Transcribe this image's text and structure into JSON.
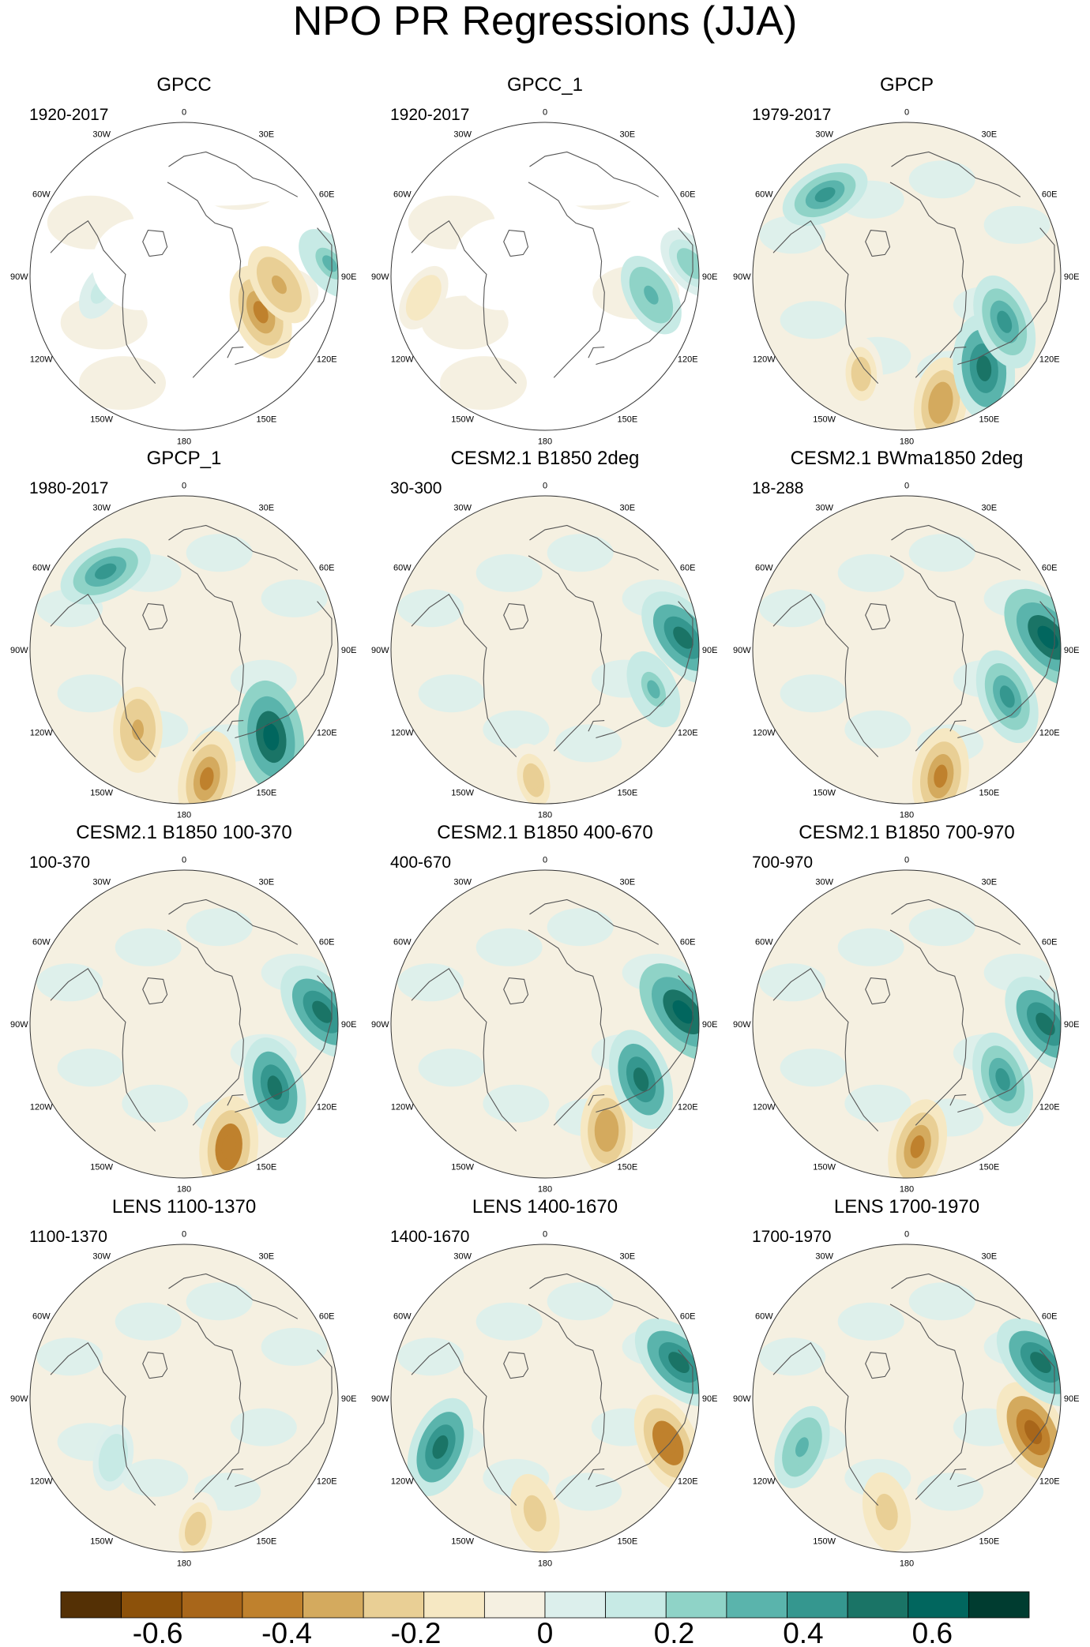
{
  "chart_data": {
    "type": "heatmap",
    "title": "NPO PR Regressions (JJA)",
    "projection": "north-polar-stereographic",
    "longitude_labels": [
      "180",
      "150E",
      "120E",
      "90E",
      "60E",
      "30E",
      "0",
      "30W",
      "60W",
      "90W",
      "120W",
      "150W"
    ],
    "panels": [
      {
        "title": "GPCC",
        "period": "1920-2017",
        "masked": true,
        "features": [
          {
            "name": "east-asia-dry",
            "lon": 115,
            "r": 0.55,
            "value": -0.45
          },
          {
            "name": "tibet-dry",
            "lon": 95,
            "r": 0.62,
            "value": -0.35
          },
          {
            "name": "india-wet",
            "lon": 85,
            "r": 0.95,
            "value": 0.3
          },
          {
            "name": "north-america-weak",
            "lon": -100,
            "r": 0.55,
            "value": 0.12
          }
        ]
      },
      {
        "title": "GPCC_1",
        "period": "1920-2017",
        "masked": true,
        "features": [
          {
            "name": "china-wet",
            "lon": 100,
            "r": 0.7,
            "value": 0.35
          },
          {
            "name": "india-wet",
            "lon": 85,
            "r": 0.95,
            "value": 0.28
          },
          {
            "name": "great-plains-dry",
            "lon": -100,
            "r": 0.8,
            "value": -0.2
          }
        ]
      },
      {
        "title": "GPCP",
        "period": "1979-2017",
        "masked": false,
        "features": [
          {
            "name": "kamchatka-dry",
            "lon": 165,
            "r": 0.85,
            "value": -0.4
          },
          {
            "name": "japan-wet",
            "lon": 140,
            "r": 0.78,
            "value": 0.55
          },
          {
            "name": "china-wet",
            "lon": 115,
            "r": 0.7,
            "value": 0.45
          },
          {
            "name": "north-pacific-dry",
            "lon": -155,
            "r": 0.7,
            "value": -0.25
          },
          {
            "name": "atlantic-wet",
            "lon": -45,
            "r": 0.75,
            "value": 0.4
          }
        ]
      },
      {
        "title": "GPCP_1",
        "period": "1980-2017",
        "masked": false,
        "features": [
          {
            "name": "kamchatka-dry",
            "lon": 170,
            "r": 0.85,
            "value": -0.45
          },
          {
            "name": "japan-wet",
            "lon": 135,
            "r": 0.8,
            "value": 0.6
          },
          {
            "name": "alaska-dry",
            "lon": -150,
            "r": 0.6,
            "value": -0.35
          },
          {
            "name": "atlantic-wet",
            "lon": -45,
            "r": 0.72,
            "value": 0.45
          }
        ]
      },
      {
        "title": "CESM2.1 B1850 2deg",
        "period": "30-300",
        "masked": false,
        "features": [
          {
            "name": "north-pacific-dry",
            "lon": -175,
            "r": 0.85,
            "value": -0.25
          },
          {
            "name": "south-asia-wet",
            "lon": 85,
            "r": 0.9,
            "value": 0.55
          },
          {
            "name": "east-asia-wet",
            "lon": 110,
            "r": 0.75,
            "value": 0.3
          }
        ]
      },
      {
        "title": "CESM2.1 BWma1850 2deg",
        "period": "18-288",
        "masked": false,
        "features": [
          {
            "name": "north-pacific-dry",
            "lon": 165,
            "r": 0.85,
            "value": -0.45
          },
          {
            "name": "south-asia-wet",
            "lon": 85,
            "r": 0.92,
            "value": 0.6
          },
          {
            "name": "east-asia-wet",
            "lon": 115,
            "r": 0.72,
            "value": 0.45
          }
        ]
      },
      {
        "title": "CESM2.1 B1850 100-370",
        "period": "100-370",
        "masked": false,
        "features": [
          {
            "name": "north-pacific-dry",
            "lon": 160,
            "r": 0.85,
            "value": -0.5
          },
          {
            "name": "east-asia-wet",
            "lon": 125,
            "r": 0.72,
            "value": 0.5
          },
          {
            "name": "south-asia-wet",
            "lon": 85,
            "r": 0.9,
            "value": 0.55
          }
        ]
      },
      {
        "title": "CESM2.1 B1850 400-670",
        "period": "400-670",
        "masked": false,
        "features": [
          {
            "name": "kamchatka-dry",
            "lon": 150,
            "r": 0.8,
            "value": -0.4
          },
          {
            "name": "east-asia-wet",
            "lon": 120,
            "r": 0.72,
            "value": 0.5
          },
          {
            "name": "south-asia-wet",
            "lon": 85,
            "r": 0.9,
            "value": 0.6
          }
        ]
      },
      {
        "title": "CESM2.1 B1850 700-970",
        "period": "700-970",
        "masked": false,
        "features": [
          {
            "name": "north-pacific-dry",
            "lon": 175,
            "r": 0.8,
            "value": -0.45
          },
          {
            "name": "east-asia-wet",
            "lon": 120,
            "r": 0.72,
            "value": 0.45
          },
          {
            "name": "south-asia-wet",
            "lon": 90,
            "r": 0.9,
            "value": 0.55
          }
        ]
      },
      {
        "title": "LENS 1100-1370",
        "period": "1100-1370",
        "masked": false,
        "features": [
          {
            "name": "north-pacific-dry",
            "lon": 175,
            "r": 0.85,
            "value": -0.25
          },
          {
            "name": "north-america-wet",
            "lon": -130,
            "r": 0.6,
            "value": 0.18
          }
        ]
      },
      {
        "title": "LENS 1400-1670",
        "period": "1400-1670",
        "masked": false,
        "features": [
          {
            "name": "north-pacific-dry",
            "lon": -175,
            "r": 0.75,
            "value": -0.3
          },
          {
            "name": "east-asia-dry",
            "lon": 110,
            "r": 0.85,
            "value": -0.5
          },
          {
            "name": "india-wet",
            "lon": 75,
            "r": 0.9,
            "value": 0.55
          },
          {
            "name": "west-coast-wet",
            "lon": -115,
            "r": 0.75,
            "value": 0.5
          }
        ]
      },
      {
        "title": "LENS 1700-1970",
        "period": "1700-1970",
        "masked": false,
        "features": [
          {
            "name": "north-pacific-dry",
            "lon": -170,
            "r": 0.75,
            "value": -0.3
          },
          {
            "name": "east-asia-dry",
            "lon": 105,
            "r": 0.85,
            "value": -0.55
          },
          {
            "name": "india-wet",
            "lon": 75,
            "r": 0.9,
            "value": 0.55
          },
          {
            "name": "west-coast-wet",
            "lon": -115,
            "r": 0.75,
            "value": 0.35
          }
        ]
      }
    ],
    "colorbar": {
      "levels": [
        -0.7,
        -0.6,
        -0.5,
        -0.4,
        -0.3,
        -0.2,
        -0.1,
        0,
        0.1,
        0.2,
        0.3,
        0.4,
        0.5,
        0.6,
        0.7
      ],
      "colors": [
        "#543005",
        "#8c510a",
        "#a8661a",
        "#bf812d",
        "#d4aa5e",
        "#e9cf95",
        "#f6e8c3",
        "#f5f0e1",
        "#dcefec",
        "#c7eae5",
        "#8fd3c7",
        "#5ab4ac",
        "#35978f",
        "#1a7466",
        "#01665e",
        "#003c30"
      ],
      "tick_labels": [
        "-0.6",
        "-0.4",
        "-0.2",
        "0",
        "0.2",
        "0.4",
        "0.6"
      ],
      "tick_values": [
        -0.6,
        -0.4,
        -0.2,
        0,
        0.2,
        0.4,
        0.6
      ]
    }
  }
}
